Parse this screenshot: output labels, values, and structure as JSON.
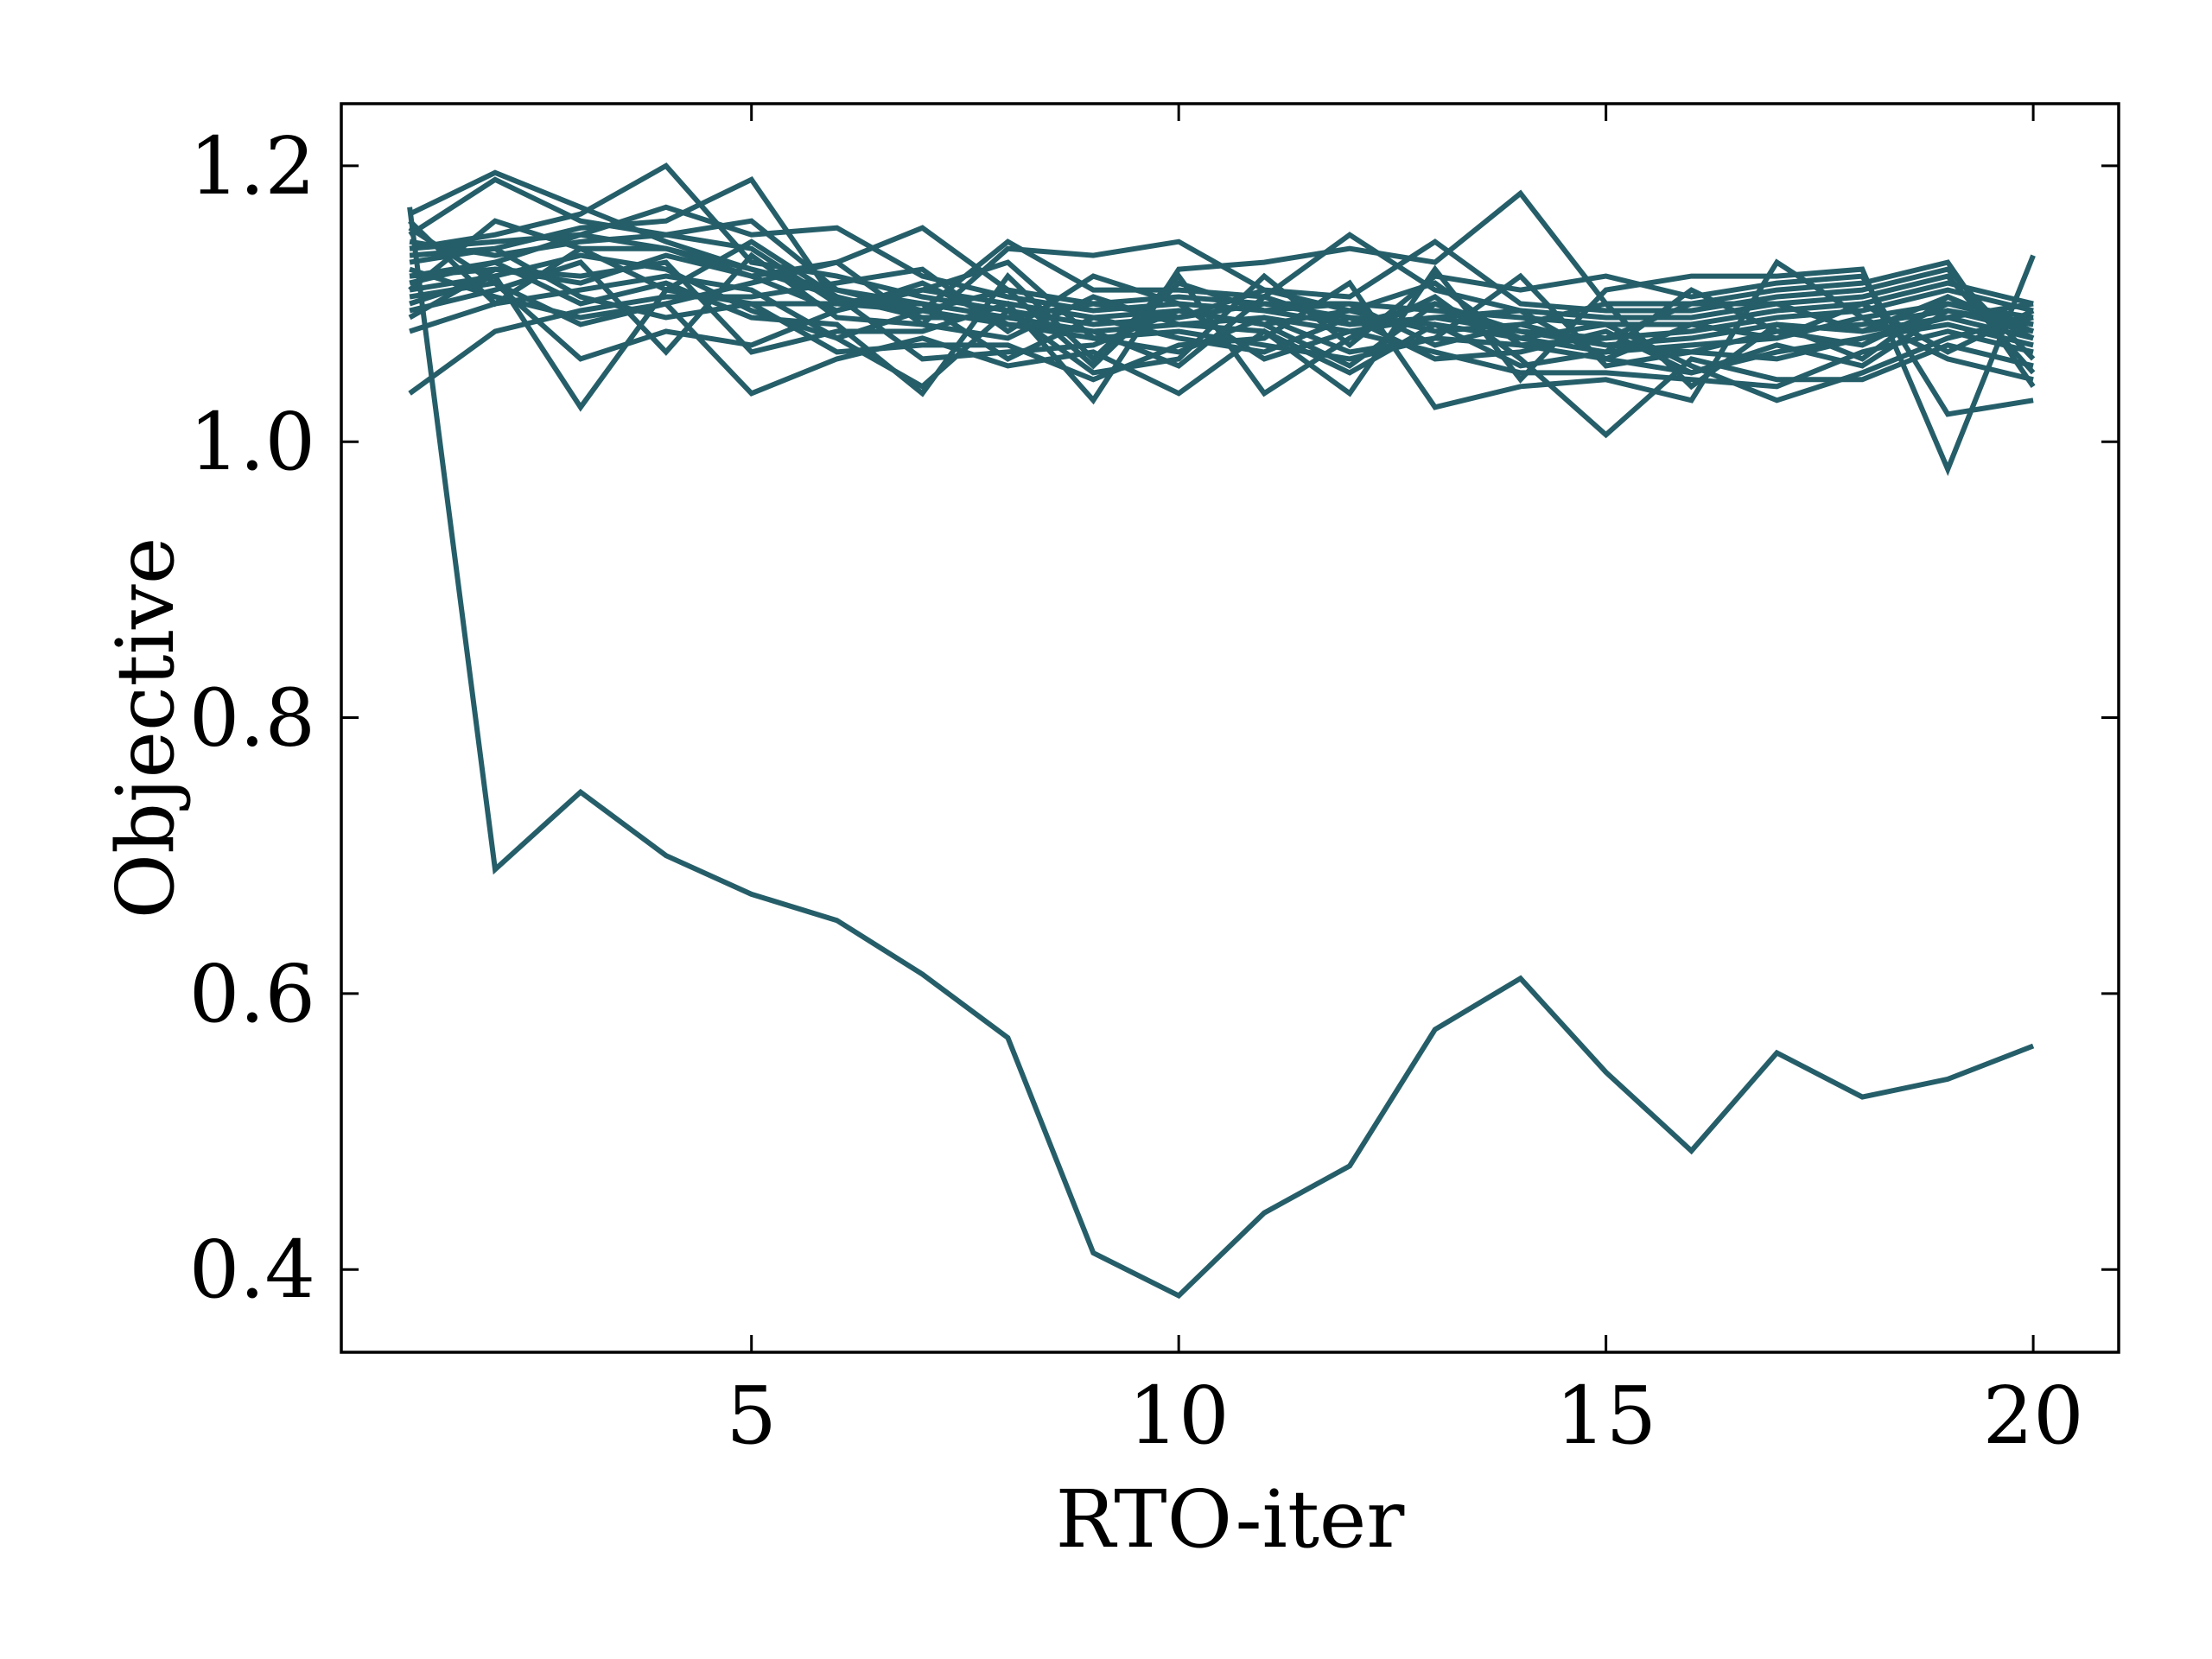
{
  "chart_data": {
    "type": "line",
    "title": "",
    "xlabel": "RTO-iter",
    "ylabel": "Objective",
    "xlim": [
      0.2,
      21
    ],
    "ylim": [
      0.34,
      1.245
    ],
    "xticks": [
      5,
      10,
      15,
      20
    ],
    "xtick_labels": [
      "5",
      "10",
      "15",
      "20"
    ],
    "yticks": [
      0.4,
      0.6,
      0.8,
      1.0,
      1.2
    ],
    "ytick_labels": [
      "0.4",
      "0.6",
      "0.8",
      "1.0",
      "1.2"
    ],
    "grid": false,
    "legend": "none",
    "line_color": "#255e69",
    "x": [
      1,
      2,
      3,
      4,
      5,
      6,
      7,
      8,
      9,
      10,
      11,
      12,
      13,
      14,
      15,
      16,
      17,
      18,
      19,
      20
    ],
    "series": [
      {
        "values": [
          1.165,
          1.195,
          1.17,
          1.145,
          1.125,
          1.11,
          1.095,
          1.085,
          1.075,
          1.08,
          1.07,
          1.06,
          1.075,
          1.07,
          1.06,
          1.05,
          1.065,
          1.075,
          1.09,
          1.075
        ]
      },
      {
        "values": [
          1.15,
          1.19,
          1.16,
          1.15,
          1.16,
          1.11,
          1.1,
          1.09,
          1.08,
          1.085,
          1.09,
          1.08,
          1.09,
          1.08,
          1.07,
          1.065,
          1.08,
          1.085,
          1.095,
          1.085
        ]
      },
      {
        "values": [
          1.14,
          1.15,
          1.165,
          1.2,
          1.13,
          1.12,
          1.105,
          1.095,
          1.085,
          1.09,
          1.1,
          1.09,
          1.085,
          1.075,
          1.065,
          1.07,
          1.075,
          1.09,
          1.1,
          1.09
        ]
      },
      {
        "values": [
          1.135,
          1.14,
          1.155,
          1.16,
          1.19,
          1.1,
          1.11,
          1.1,
          1.09,
          1.095,
          1.085,
          1.095,
          1.08,
          1.085,
          1.07,
          1.075,
          1.085,
          1.08,
          1.105,
          1.08
        ]
      },
      {
        "values": [
          1.12,
          1.13,
          1.15,
          1.17,
          1.15,
          1.155,
          1.12,
          1.105,
          1.095,
          1.1,
          1.095,
          1.085,
          1.1,
          1.08,
          1.075,
          1.08,
          1.09,
          1.095,
          1.11,
          1.095
        ]
      },
      {
        "values": [
          1.11,
          1.16,
          1.14,
          1.14,
          1.12,
          1.13,
          1.155,
          1.11,
          1.1,
          1.105,
          1.1,
          1.1,
          1.095,
          1.09,
          1.085,
          1.085,
          1.095,
          1.1,
          1.115,
          1.1
        ]
      },
      {
        "values": [
          1.1,
          1.12,
          1.025,
          1.11,
          1.1,
          1.1,
          1.095,
          1.145,
          1.11,
          1.11,
          1.105,
          1.15,
          1.11,
          1.095,
          1.09,
          1.09,
          1.1,
          1.105,
          1.12,
          1.05
        ]
      },
      {
        "values": [
          1.095,
          1.11,
          1.13,
          1.065,
          1.135,
          1.09,
          1.085,
          1.14,
          1.135,
          1.145,
          1.11,
          1.105,
          1.145,
          1.1,
          1.095,
          1.095,
          1.105,
          1.11,
          1.125,
          1.06
        ]
      },
      {
        "values": [
          1.09,
          1.125,
          1.12,
          1.13,
          1.065,
          1.08,
          1.08,
          1.1,
          1.03,
          1.125,
          1.13,
          1.14,
          1.13,
          1.18,
          1.1,
          1.1,
          1.11,
          1.115,
          1.13,
          1.04
        ]
      },
      {
        "values": [
          1.08,
          1.1,
          1.11,
          1.12,
          1.11,
          1.075,
          1.04,
          1.095,
          1.05,
          1.06,
          1.12,
          1.07,
          1.12,
          1.11,
          1.12,
          1.105,
          1.115,
          1.12,
          1.02,
          1.03
        ]
      },
      {
        "values": [
          1.125,
          1.105,
          1.09,
          1.1,
          1.035,
          1.06,
          1.075,
          1.055,
          1.065,
          1.035,
          1.08,
          1.035,
          1.125,
          1.045,
          1.11,
          1.12,
          1.12,
          1.125,
          0.98,
          1.135
        ]
      },
      {
        "values": [
          1.13,
          1.14,
          1.105,
          1.09,
          1.1,
          1.065,
          1.07,
          1.07,
          1.045,
          1.07,
          1.075,
          1.115,
          1.025,
          1.04,
          1.045,
          1.03,
          1.13,
          1.09,
          1.06,
          1.045
        ]
      },
      {
        "values": [
          1.115,
          1.13,
          1.1,
          1.115,
          1.09,
          1.085,
          1.035,
          1.12,
          1.06,
          1.12,
          1.035,
          1.075,
          1.105,
          1.06,
          1.005,
          1.06,
          1.045,
          1.045,
          1.07,
          1.055
        ]
      },
      {
        "values": [
          1.035,
          1.08,
          1.095,
          1.105,
          1.105,
          1.115,
          1.125,
          1.08,
          1.12,
          1.1,
          1.06,
          1.08,
          1.065,
          1.05,
          1.05,
          1.045,
          1.04,
          1.065,
          1.08,
          1.065
        ]
      },
      {
        "values": [
          1.105,
          1.115,
          1.06,
          1.08,
          1.07,
          1.095,
          1.11,
          1.13,
          1.075,
          1.065,
          1.09,
          1.065,
          1.075,
          1.12,
          1.055,
          1.065,
          1.06,
          1.075,
          1.085,
          1.07
        ]
      },
      {
        "values": [
          1.145,
          1.135,
          1.145,
          1.15,
          1.14,
          1.1,
          1.1,
          1.06,
          1.09,
          1.075,
          1.065,
          1.09,
          1.06,
          1.065,
          1.08,
          1.05,
          1.07,
          1.055,
          1.095,
          1.08
        ]
      },
      {
        "values": [
          1.155,
          1.115,
          1.085,
          1.1,
          1.115,
          1.13,
          1.085,
          1.075,
          1.105,
          1.085,
          1.08,
          1.05,
          1.085,
          1.055,
          1.065,
          1.11,
          1.08,
          1.07,
          1.1,
          1.085
        ]
      },
      {
        "values": [
          1.11,
          1.12,
          1.135,
          1.125,
          1.095,
          1.075,
          1.095,
          1.11,
          1.055,
          1.115,
          1.095,
          1.1,
          1.07,
          1.085,
          1.1,
          1.04,
          1.085,
          1.06,
          1.105,
          1.075
        ]
      },
      {
        "values": [
          1.14,
          1.145,
          1.15,
          1.14,
          1.125,
          1.105,
          1.06,
          1.065,
          1.07,
          1.095,
          1.085,
          1.055,
          1.1,
          1.075,
          1.085,
          1.055,
          1.03,
          1.05,
          1.075,
          1.09
        ]
      },
      {
        "values": [
          1.12,
          1.125,
          1.115,
          1.135,
          1.12,
          1.095,
          1.115,
          1.085,
          1.08,
          1.055,
          1.105,
          1.085,
          1.09,
          1.095,
          1.06,
          1.085,
          1.075,
          1.1,
          1.065,
          1.095
        ]
      },
      {
        "values": [
          1.16,
          1.1,
          1.14,
          1.11,
          1.145,
          1.105,
          1.09,
          1.09,
          1.1,
          1.09,
          1.11,
          1.095,
          1.115,
          1.07,
          1.075,
          1.1,
          1.1,
          1.08,
          1.09,
          1.1
        ]
      },
      {
        "values": [
          1.17,
          0.69,
          0.746,
          0.7,
          0.672,
          0.653,
          0.614,
          0.568,
          0.412,
          0.381,
          0.441,
          0.475,
          0.574,
          0.611,
          0.543,
          0.486,
          0.557,
          0.525,
          0.538,
          0.562
        ]
      }
    ]
  }
}
